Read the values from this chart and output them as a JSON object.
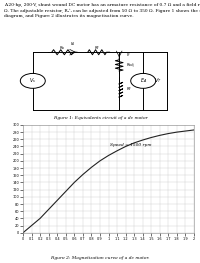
{
  "fig1_caption": "Figure 1: Equivalents circuit of a dc motor",
  "fig2_caption": "Figure 2: Magnetization curve of a dc motor.",
  "annotation": "Speed = 1500 rpm",
  "xlim": [
    0,
    2.0
  ],
  "ylim": [
    0,
    300
  ],
  "xticks": [
    0,
    0.1,
    0.2,
    0.3,
    0.4,
    0.5,
    0.6,
    0.7,
    0.8,
    0.9,
    1.0,
    1.1,
    1.2,
    1.3,
    1.4,
    1.5,
    1.6,
    1.7,
    1.8,
    1.9,
    2.0
  ],
  "yticks": [
    0,
    20,
    40,
    60,
    80,
    100,
    120,
    140,
    160,
    180,
    200,
    220,
    240,
    260,
    280,
    300
  ],
  "curve_color": "#222222",
  "grid_color": "#cccccc",
  "background_color": "#ffffff",
  "mag_x": [
    0,
    0.1,
    0.2,
    0.3,
    0.4,
    0.5,
    0.6,
    0.7,
    0.8,
    0.9,
    1.0,
    1.1,
    1.2,
    1.3,
    1.4,
    1.5,
    1.6,
    1.7,
    1.8,
    1.9,
    2.0
  ],
  "mag_y": [
    0,
    20,
    40,
    65,
    90,
    115,
    140,
    162,
    182,
    200,
    215,
    228,
    240,
    250,
    258,
    265,
    271,
    276,
    280,
    283,
    286
  ],
  "header_lines": [
    "A 20-hp, 200-V, shunt wound DC motor has an armature resistance of 0.7 Ω and a field resistance of 100",
    "Ω. The adjustable resistor, Rₐⁱⱼ can be adjusted from 50 Ω to 350 Ω. Figure 1 shows the motor's circuit",
    "diagram, and Figure 2 illustrates its magnetisation curve."
  ]
}
